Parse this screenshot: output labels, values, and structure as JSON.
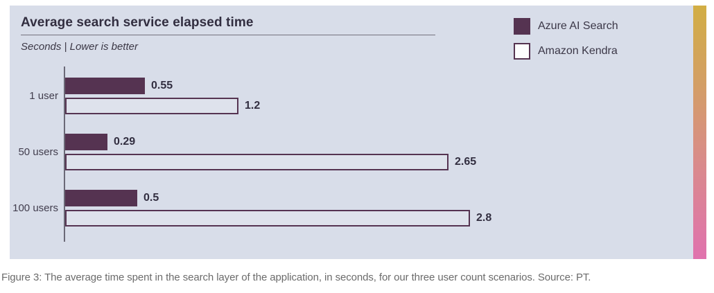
{
  "chart_data": {
    "type": "bar",
    "orientation": "horizontal",
    "title": "Average search service elapsed time",
    "subtitle": "Seconds  |  Lower is better",
    "units": "Seconds",
    "note": "Lower is better",
    "categories": [
      "1 user",
      "50 users",
      "100 users"
    ],
    "series": [
      {
        "name": "Azure AI Search",
        "style": "filled",
        "color": "#553351",
        "values": [
          0.55,
          0.29,
          0.5
        ]
      },
      {
        "name": "Amazon Kendra",
        "style": "outlined",
        "color": "#553351",
        "values": [
          1.2,
          2.65,
          2.8
        ]
      }
    ],
    "xlim": [
      0,
      3.0
    ],
    "value_labels": true,
    "legend_position": "top-right",
    "grid": false
  },
  "caption": "Figure 3: The average time spent in the search layer of the application, in seconds, for our three user count scenarios. Source: PT.",
  "colors": {
    "panel_background": "#d8dde9",
    "bar_fill": "#553351",
    "accent_gradient_top": "#d2ae44",
    "accent_gradient_bottom": "#e072ae",
    "caption_text": "#6b6b6b"
  }
}
